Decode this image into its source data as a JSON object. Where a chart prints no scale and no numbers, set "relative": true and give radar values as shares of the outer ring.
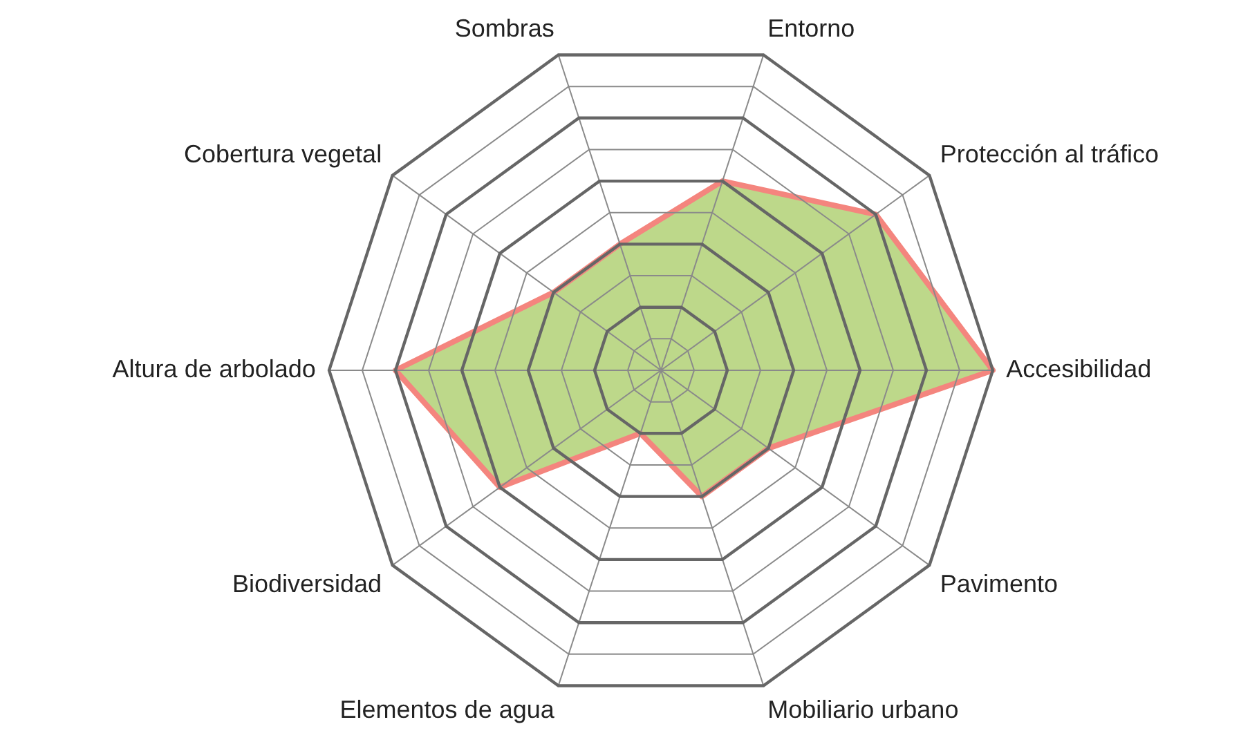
{
  "chart_data": {
    "type": "radar",
    "relative": true,
    "grid": true,
    "categories": [
      "Entorno",
      "Protección al tráfico",
      "Accesibilidad",
      "Pavimento",
      "Mobiliario urbano",
      "Elementos de agua",
      "Biodiversidad",
      "Altura de arbolado",
      "Cobertura vegetal",
      "Sombras"
    ],
    "series": [
      {
        "color": "#bdd88a",
        "values": [
          0.6,
          0.8,
          1.0,
          0.4,
          0.4,
          0.2,
          0.6,
          0.8,
          0.4,
          0.4
        ]
      }
    ]
  }
}
